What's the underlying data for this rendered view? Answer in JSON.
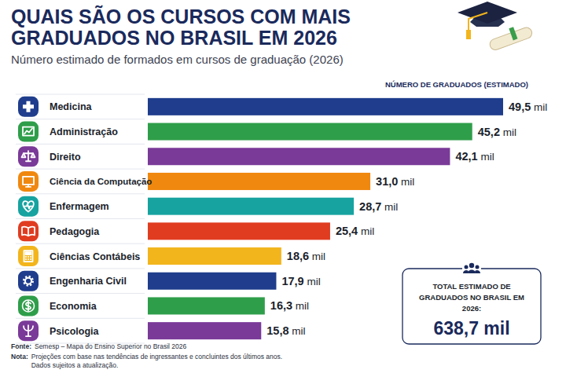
{
  "chart_data": {
    "type": "bar",
    "orientation": "horizontal",
    "title": "QUAIS SÃO OS CURSOS COM MAIS GRADUADOS NO BRASIL EM 2026",
    "subtitle": "Número estimado de formados em cursos de graduação (2026)",
    "x_label": "NÚMERO DE GRADUADOS (ESTIMADO)",
    "categories": [
      "Medicina",
      "Administração",
      "Direito",
      "Ciência da Computação",
      "Enfermagem",
      "Pedagogia",
      "Ciências Contábeis",
      "Engenharia Civil",
      "Economia",
      "Psicologia"
    ],
    "values": [
      49.5,
      45.2,
      42.1,
      31.0,
      28.7,
      25.4,
      18.6,
      17.9,
      16.3,
      15.8
    ],
    "value_labels": [
      "49,5 mil",
      "45,2 mil",
      "42,1 mil",
      "31,0 mil",
      "28,7 mil",
      "25,4 mil",
      "18,6 mil",
      "17,9 mil",
      "16,3 mil",
      "15,8 mil"
    ],
    "colors": [
      "#1f3d8c",
      "#2f9e4a",
      "#7a3a98",
      "#f0880f",
      "#17a3a0",
      "#e03c20",
      "#f2b51c",
      "#1f3d8c",
      "#2f9e4a",
      "#7a3a98"
    ],
    "xlim": [
      0,
      49.5
    ],
    "data_labels": true,
    "tick_labels": false,
    "grid": false,
    "total": {
      "label": "TOTAL ESTIMADO DE GRADUADOS NO BRASIL EM 2026:",
      "value": 638.7,
      "value_label": "638,7 mil"
    },
    "source": "Fonte: Semesp – Mapa do Ensino Superior no Brasil 2026",
    "note": "Nota: Projeções com base nas tendências de ingressantes e concluintes dos últimos anos. Dados sujeitos a atualização."
  }
}
